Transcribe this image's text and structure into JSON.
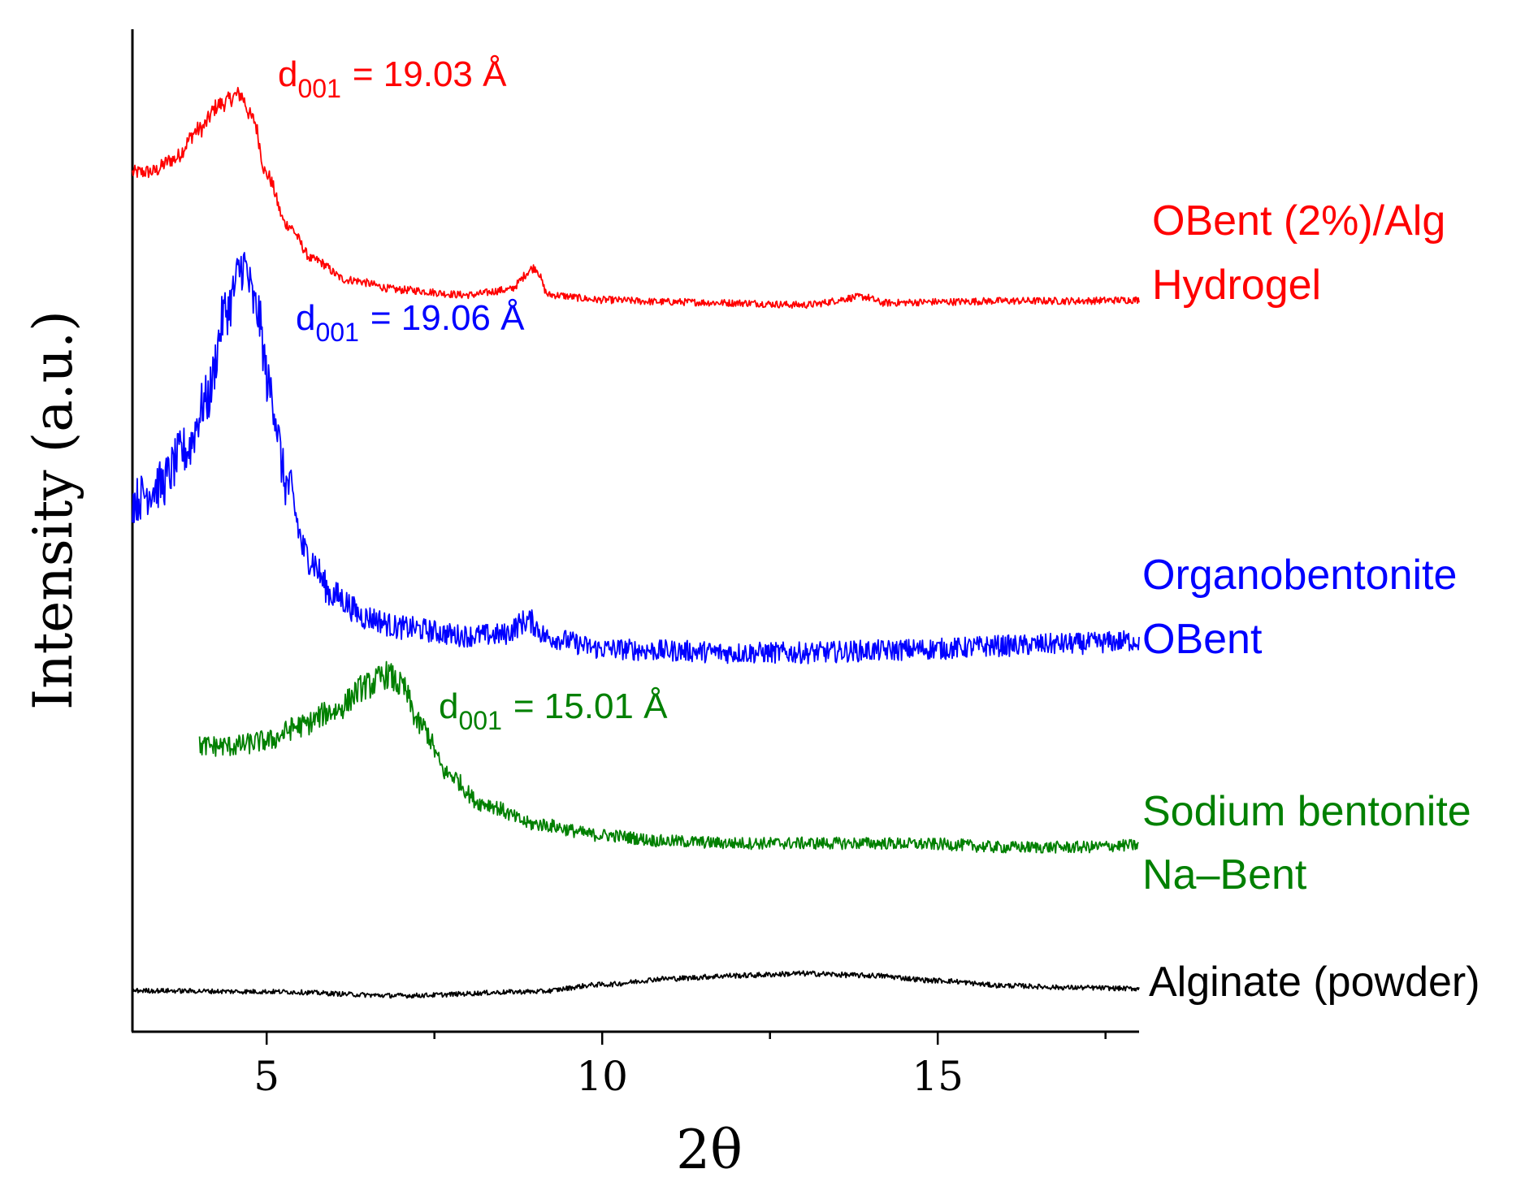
{
  "chart_data": {
    "type": "line",
    "title": "",
    "xlabel": "2θ",
    "ylabel": "Intensity (a.u.)",
    "xlim": [
      3.0,
      18.0
    ],
    "xticks": [
      5,
      10,
      15
    ],
    "yticks": [],
    "grid": false,
    "series": [
      {
        "id": "hydrogel",
        "name_line1": "OBent (2%)/Alg",
        "name_line2": "Hydrogel",
        "color": "#ff0000",
        "x_range": [
          3.0,
          18.0
        ],
        "noise": 0.006,
        "keypoints": [
          [
            3.0,
            0.857
          ],
          [
            3.3,
            0.858
          ],
          [
            3.6,
            0.87
          ],
          [
            4.0,
            0.9
          ],
          [
            4.3,
            0.925
          ],
          [
            4.6,
            0.935
          ],
          [
            4.8,
            0.91
          ],
          [
            5.0,
            0.855
          ],
          [
            5.3,
            0.805
          ],
          [
            5.7,
            0.77
          ],
          [
            6.2,
            0.75
          ],
          [
            7.0,
            0.74
          ],
          [
            8.0,
            0.735
          ],
          [
            8.6,
            0.74
          ],
          [
            9.0,
            0.762
          ],
          [
            9.2,
            0.735
          ],
          [
            10.0,
            0.73
          ],
          [
            11.0,
            0.728
          ],
          [
            12.0,
            0.727
          ],
          [
            13.0,
            0.725
          ],
          [
            13.9,
            0.733
          ],
          [
            14.2,
            0.727
          ],
          [
            15.0,
            0.728
          ],
          [
            16.0,
            0.729
          ],
          [
            17.0,
            0.729
          ],
          [
            18.0,
            0.73
          ]
        ],
        "peak_annotation": {
          "d_prefix": "d",
          "d_subscript": "001",
          "d_value": "= 19.03 Å",
          "peak_2theta": 4.64
        }
      },
      {
        "id": "organobentonite",
        "name_line1": "Organobentonite",
        "name_line2": "OBent",
        "color": "#0000ff",
        "x_range": [
          3.0,
          18.0
        ],
        "noise": 0.018,
        "keypoints": [
          [
            3.0,
            0.53
          ],
          [
            3.4,
            0.545
          ],
          [
            3.8,
            0.58
          ],
          [
            4.1,
            0.63
          ],
          [
            4.4,
            0.72
          ],
          [
            4.65,
            0.765
          ],
          [
            4.85,
            0.72
          ],
          [
            5.05,
            0.64
          ],
          [
            5.3,
            0.545
          ],
          [
            5.6,
            0.475
          ],
          [
            6.0,
            0.435
          ],
          [
            6.5,
            0.413
          ],
          [
            7.0,
            0.403
          ],
          [
            8.0,
            0.395
          ],
          [
            8.5,
            0.396
          ],
          [
            8.9,
            0.41
          ],
          [
            9.2,
            0.393
          ],
          [
            10.0,
            0.382
          ],
          [
            11.0,
            0.38
          ],
          [
            12.0,
            0.378
          ],
          [
            13.0,
            0.378
          ],
          [
            14.0,
            0.38
          ],
          [
            15.0,
            0.382
          ],
          [
            16.0,
            0.385
          ],
          [
            17.0,
            0.387
          ],
          [
            18.0,
            0.39
          ]
        ],
        "peak_annotation": {
          "d_prefix": "d",
          "d_subscript": "001",
          "d_value": "= 19.06 Å",
          "peak_2theta": 4.69
        }
      },
      {
        "id": "sodium-bentonite",
        "name_line1": "Sodium bentonite",
        "name_line2": "Na–Bent",
        "color": "#008000",
        "x_range": [
          4.0,
          18.0
        ],
        "noise": 0.01,
        "keypoints": [
          [
            4.0,
            0.285
          ],
          [
            4.5,
            0.285
          ],
          [
            5.0,
            0.29
          ],
          [
            5.5,
            0.305
          ],
          [
            6.0,
            0.32
          ],
          [
            6.5,
            0.345
          ],
          [
            6.8,
            0.356
          ],
          [
            7.0,
            0.345
          ],
          [
            7.3,
            0.305
          ],
          [
            7.7,
            0.257
          ],
          [
            8.2,
            0.228
          ],
          [
            9.0,
            0.207
          ],
          [
            10.0,
            0.196
          ],
          [
            11.0,
            0.19
          ],
          [
            12.0,
            0.188
          ],
          [
            13.0,
            0.188
          ],
          [
            14.0,
            0.188
          ],
          [
            15.0,
            0.187
          ],
          [
            16.0,
            0.184
          ],
          [
            17.0,
            0.184
          ],
          [
            18.0,
            0.186
          ]
        ],
        "peak_annotation": {
          "d_prefix": "d",
          "d_subscript": "001",
          "d_value": "= 15.01 Å",
          "peak_2theta": 6.67
        }
      },
      {
        "id": "alginate",
        "name_line1": "Alginate (powder)",
        "name_line2": "",
        "color": "#000000",
        "x_range": [
          3.0,
          18.0
        ],
        "noise": 0.004,
        "keypoints": [
          [
            3.0,
            0.041
          ],
          [
            5.0,
            0.04
          ],
          [
            7.0,
            0.036
          ],
          [
            9.0,
            0.04
          ],
          [
            10.0,
            0.047
          ],
          [
            11.0,
            0.053
          ],
          [
            12.0,
            0.056
          ],
          [
            13.0,
            0.058
          ],
          [
            14.0,
            0.056
          ],
          [
            15.0,
            0.051
          ],
          [
            16.0,
            0.046
          ],
          [
            17.0,
            0.044
          ],
          [
            18.0,
            0.043
          ]
        ]
      }
    ]
  }
}
